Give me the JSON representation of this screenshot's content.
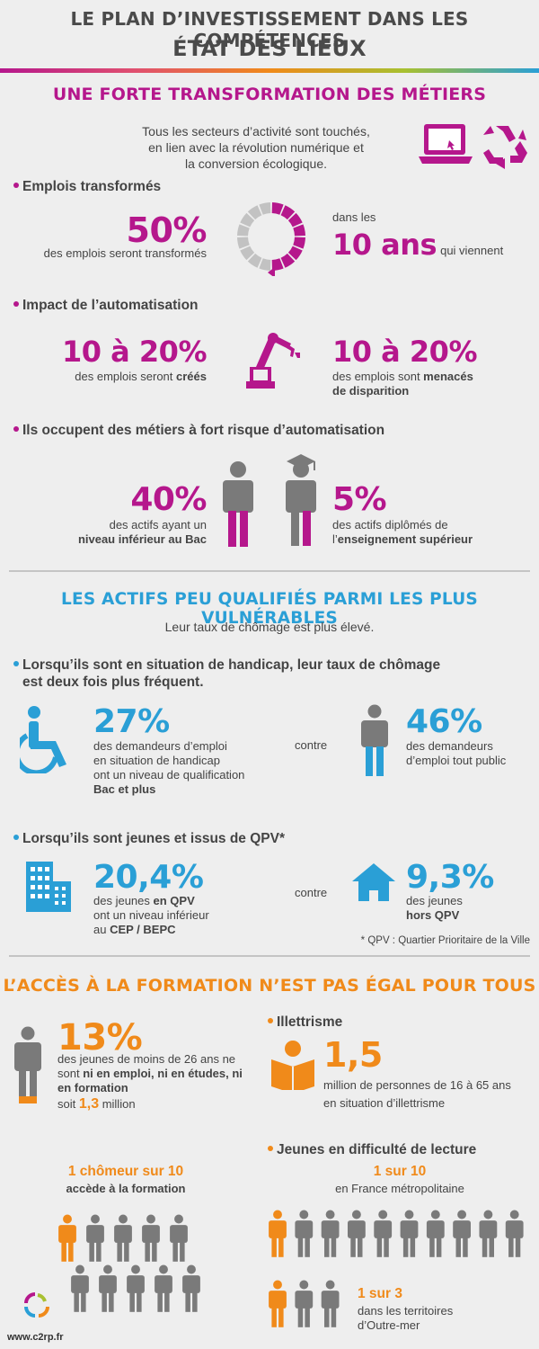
{
  "header": {
    "line1": "LE PLAN D’INVESTISSEMENT DANS LES COMPÉTENCES",
    "line2": "ÉTAT DES LIEUX"
  },
  "colors": {
    "magenta": "#b5178c",
    "blue": "#2a9fd6",
    "orange": "#f08a1a",
    "gray": "#7a7a7a"
  },
  "s1": {
    "title": "UNE FORTE TRANSFORMATION DES MÉTIERS",
    "intro": [
      "Tous les secteurs d’activité sont touchés,",
      "en lien avec la révolution numérique et",
      "la conversion écologique."
    ],
    "icons": [
      "laptop-icon",
      "recycle-icon"
    ],
    "emplois": {
      "head": "Emplois transformés",
      "pct": "50%",
      "desc": "des emplois seront transformés",
      "pre": "dans les",
      "big": "10 ans",
      "post": "qui viennent",
      "share": 0.5
    },
    "auto": {
      "head": "Impact de l’automatisation",
      "left_pct": "10 à 20%",
      "left_a": "des emplois seront ",
      "left_b": "créés",
      "right_pct": "10 à 20%",
      "right_a": "des emplois sont ",
      "right_b": "menacés",
      "right_c": "de disparition"
    },
    "risque": {
      "head": "Ils occupent des métiers à fort risque d’automatisation",
      "left_pct": "40%",
      "left_a": "des actifs ayant un",
      "left_b": "niveau inférieur au Bac",
      "right_pct": "5%",
      "right_a": "des actifs diplômés de",
      "right_b": "l’",
      "right_c": "enseignement supérieur"
    }
  },
  "s2": {
    "title": "LES ACTIFS PEU QUALIFIÉS PARMI LES PLUS VULNÉRABLES",
    "intro": "Leur taux de chômage est plus élevé.",
    "hand": {
      "head1": "Lorsqu’ils sont en situation de handicap, leur taux de chômage",
      "head2": "est deux fois plus fréquent.",
      "pct": "27%",
      "desc": [
        "des demandeurs d’emploi",
        "en situation de handicap",
        "ont un niveau de qualification"
      ],
      "desc_b": "Bac et plus",
      "contre": "contre",
      "pct2": "46%",
      "desc2": [
        "des demandeurs",
        "d’emploi tout public"
      ]
    },
    "qpv": {
      "head": "Lorsqu’ils sont jeunes et issus de QPV*",
      "pct": "20,4%",
      "d1": "des jeunes ",
      "d1b": "en QPV",
      "d2": "ont un niveau inférieur",
      "d3a": "au ",
      "d3b": "CEP / BEPC",
      "contre": "contre",
      "pct2": "9,3%",
      "e1": "des jeunes",
      "e2": "hors QPV",
      "note": "* QPV : Quartier Prioritaire de la Ville"
    }
  },
  "s3": {
    "title": "L’ACCÈS À LA FORMATION N’EST PAS ÉGAL POUR TOUS",
    "neet": {
      "pct": "13%",
      "l1": "des jeunes de moins de 26 ans ne",
      "l2a": "sont ",
      "l2b": "ni en emploi, ni en études, ni",
      "l3": "en formation",
      "l4a": "soit ",
      "l4b": "1,3",
      "l4c": " million",
      "share": 0.13
    },
    "illet": {
      "head": "Illettrisme",
      "big": "1,5",
      "l1": "million de personnes de 16 à 65 ans",
      "l2": "en situation d’illettrisme"
    },
    "chom": {
      "t1": "1 chômeur sur 10",
      "t2": "accède à la formation",
      "highlighted": 1,
      "total": 10
    },
    "lect": {
      "head": "Jeunes en difficulté de lecture",
      "t1": "1 sur 10",
      "t2": "en France métropolitaine",
      "t3": "1 sur 3",
      "t4": "dans les territoires",
      "t5": "d’Outre-mer"
    }
  },
  "footer": {
    "url": "www.c2rp.fr",
    "logo": "c2rp-logo"
  }
}
